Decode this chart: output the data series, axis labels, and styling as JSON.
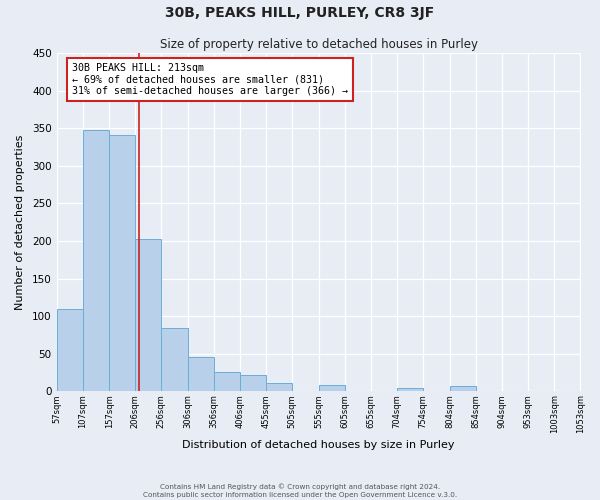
{
  "title": "30B, PEAKS HILL, PURLEY, CR8 3JF",
  "subtitle": "Size of property relative to detached houses in Purley",
  "xlabel": "Distribution of detached houses by size in Purley",
  "ylabel": "Number of detached properties",
  "bar_heights": [
    110,
    348,
    341,
    203,
    84,
    46,
    25,
    22,
    11,
    0,
    8,
    0,
    0,
    5,
    0,
    7,
    0,
    0,
    0,
    0
  ],
  "bin_labels": [
    "57sqm",
    "107sqm",
    "157sqm",
    "206sqm",
    "256sqm",
    "306sqm",
    "356sqm",
    "406sqm",
    "455sqm",
    "505sqm",
    "555sqm",
    "605sqm",
    "655sqm",
    "704sqm",
    "754sqm",
    "804sqm",
    "854sqm",
    "904sqm",
    "953sqm",
    "1003sqm",
    "1053sqm"
  ],
  "bar_edges": [
    57,
    107,
    157,
    206,
    256,
    306,
    356,
    406,
    455,
    505,
    555,
    605,
    655,
    704,
    754,
    804,
    854,
    904,
    953,
    1003,
    1053
  ],
  "bar_color": "#b8d0ea",
  "bar_edge_color": "#6aaed6",
  "bg_color": "#e8ecf5",
  "grid_color": "#ffffff",
  "ylim": [
    0,
    450
  ],
  "yticks": [
    0,
    50,
    100,
    150,
    200,
    250,
    300,
    350,
    400,
    450
  ],
  "property_size": 213,
  "vline_color": "#cc2222",
  "annotation_text": "30B PEAKS HILL: 213sqm\n← 69% of detached houses are smaller (831)\n31% of semi-detached houses are larger (366) →",
  "annotation_box_color": "#ffffff",
  "annotation_box_edge": "#cc2222",
  "footer_line1": "Contains HM Land Registry data © Crown copyright and database right 2024.",
  "footer_line2": "Contains public sector information licensed under the Open Government Licence v.3.0."
}
